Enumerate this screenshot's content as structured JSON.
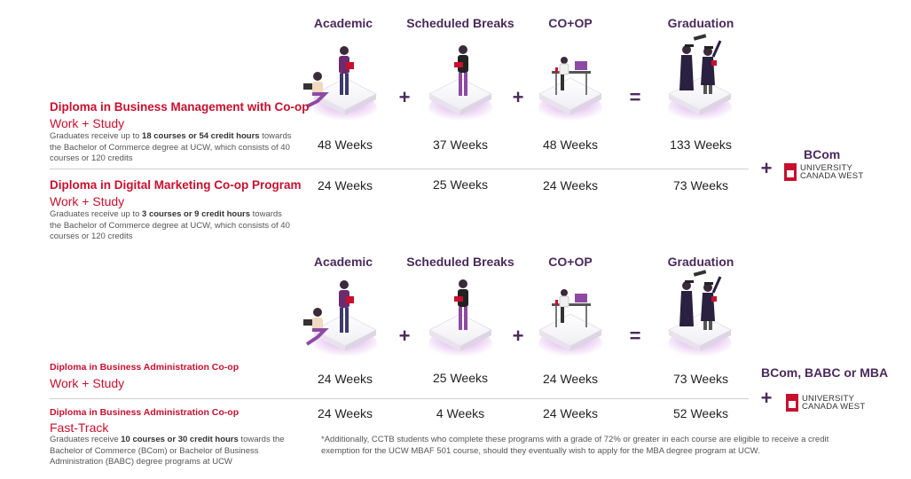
{
  "columns": [
    "Academic",
    "Scheduled Breaks",
    "CO+OP",
    "Graduation"
  ],
  "operators": {
    "plus": "+",
    "equals": "="
  },
  "section1": {
    "programs": [
      {
        "title": "Diploma in Business Management with Co-op",
        "subtitle": "Work + Study",
        "desc_pre": "Graduates receive up to ",
        "desc_bold1": "18 courses or 54 credit hours",
        "desc_mid": " towards the Bachelor of Commerce degree at UCW, which consists of 40 courses or 120 credits",
        "weeks": [
          "48 Weeks",
          "37 Weeks",
          "48 Weeks",
          "133 Weeks"
        ]
      },
      {
        "title": "Diploma in Digital Marketing Co-op Program",
        "subtitle": "Work + Study",
        "desc_pre": "Graduates receive up to ",
        "desc_bold1": "3 courses or 9 credit hours",
        "desc_mid": " towards the Bachelor of Commerce degree at UCW, which consists of 40 courses or 120 credits",
        "weeks": [
          "24 Weeks",
          "25 Weeks",
          "24 Weeks",
          "73 Weeks"
        ]
      }
    ],
    "degree": "BCom"
  },
  "section2": {
    "programs": [
      {
        "title": "Diploma in Business Administration Co-op",
        "subtitle": "Work + Study",
        "weeks": [
          "24 Weeks",
          "25 Weeks",
          "24 Weeks",
          "73 Weeks"
        ]
      },
      {
        "title": "Diploma in Business Administration Co-op",
        "subtitle": "Fast-Track",
        "desc_pre": "Graduates receive ",
        "desc_bold1": "10 courses or 30 credit hours",
        "desc_mid": " towards the Bachelor of Commerce (BCom) or Bachelor of Business Administration (BABC) degree programs at UCW",
        "weeks": [
          "24 Weeks",
          "4 Weeks",
          "24 Weeks",
          "52 Weeks"
        ]
      }
    ],
    "degree": "BCom, BABC or MBA"
  },
  "ucw": {
    "mark": "UCW",
    "line1": "UNIVERSITY",
    "line2": "CANADA WEST"
  },
  "note": "*Additionally, CCTB students who complete these programs with a grade of 72% or greater in each course are eligible to receive a credit exemption for the UCW MBAF 501 course, should they eventually wish to apply for the MBA degree program at UCW.",
  "colors": {
    "red": "#c8102e",
    "purple": "#4a2a5a",
    "glow": "#b04ad0"
  }
}
